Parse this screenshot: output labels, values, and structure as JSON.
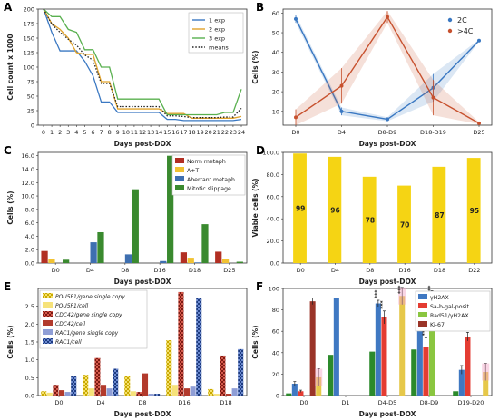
{
  "chart_data": [
    {
      "panel": "A",
      "type": "line",
      "ylabel": "Cell count x 1000",
      "xlabel": "Days post-DOX",
      "ylim": [
        0,
        200
      ],
      "yticks": [
        0,
        25,
        50,
        75,
        100,
        125,
        150,
        175,
        200
      ],
      "xticks": [
        "0",
        "1",
        "2",
        "3",
        "4",
        "5",
        "6",
        "7",
        "8",
        "9",
        "10",
        "11",
        "12",
        "13",
        "14",
        "15",
        "16",
        "17",
        "18",
        "19",
        "20",
        "21",
        "22",
        "23",
        "24"
      ],
      "x": [
        0,
        1,
        2,
        3,
        4,
        5,
        6,
        7,
        8,
        9,
        10,
        11,
        12,
        13,
        14,
        15,
        16,
        17,
        18,
        19,
        20,
        21,
        22,
        23,
        24
      ],
      "legend_position": "top-right",
      "series": [
        {
          "name": "1 exp",
          "color": "#3a78c2",
          "dash": "solid",
          "values": [
            200,
            160,
            128,
            128,
            128,
            110,
            85,
            40,
            40,
            22,
            22,
            22,
            22,
            22,
            22,
            10,
            10,
            8,
            8,
            8,
            8,
            8,
            8,
            8,
            10
          ]
        },
        {
          "name": "2 exp",
          "color": "#e1a32c",
          "dash": "solid",
          "values": [
            200,
            175,
            165,
            150,
            125,
            122,
            122,
            75,
            75,
            28,
            28,
            28,
            28,
            28,
            28,
            20,
            20,
            20,
            12,
            12,
            12,
            12,
            12,
            12,
            15
          ]
        },
        {
          "name": "3 exp",
          "color": "#59b04f",
          "dash": "solid",
          "values": [
            200,
            187,
            187,
            165,
            160,
            130,
            130,
            100,
            100,
            45,
            45,
            45,
            45,
            45,
            45,
            18,
            18,
            18,
            18,
            18,
            18,
            18,
            22,
            22,
            62
          ]
        },
        {
          "name": "means",
          "color": "#222222",
          "dash": "dot",
          "values": [
            200,
            174,
            160,
            148,
            138,
            121,
            112,
            72,
            72,
            32,
            32,
            32,
            32,
            32,
            32,
            16,
            16,
            15,
            13,
            13,
            13,
            13,
            14,
            14,
            29
          ]
        }
      ]
    },
    {
      "panel": "B",
      "type": "line",
      "ylabel": "Cells (%)",
      "xlabel": "Days post-DOX",
      "ylim": [
        3,
        62
      ],
      "yticks": [
        10,
        20,
        30,
        40,
        50,
        60
      ],
      "categories": [
        "D0",
        "D4",
        "D8-D9",
        "D18-D19",
        "D25"
      ],
      "legend_position": "top-right",
      "series": [
        {
          "name": "2C",
          "color": "#3a78c2",
          "values": [
            57,
            10,
            6,
            22,
            46
          ],
          "errors": [
            2,
            2,
            1,
            7,
            0.5
          ]
        },
        {
          "name": ">4C",
          "color": "#c7512e",
          "values": [
            7,
            23,
            58,
            17,
            4
          ],
          "errors": [
            4,
            9,
            3,
            9,
            0.5
          ]
        }
      ]
    },
    {
      "panel": "C",
      "type": "bar",
      "ylabel": "Cells (%)",
      "xlabel": "Days post-DOX",
      "ylim": [
        0,
        16.5
      ],
      "yticks": [
        "0.0",
        "2.0",
        "4.0",
        "6.0",
        "8.0",
        "10.0",
        "12.0",
        "14.0",
        "16.0"
      ],
      "categories": [
        "D0",
        "D4",
        "D8",
        "D16",
        "D18",
        "D25"
      ],
      "legend_position": "top-right",
      "series": [
        {
          "name": "Norm metaph",
          "color": "#b22f23",
          "values": [
            1.8,
            0,
            0,
            0,
            1.6,
            1.7
          ]
        },
        {
          "name": "A+T",
          "color": "#f1c232",
          "values": [
            0.6,
            0,
            0,
            0,
            0.8,
            0.6
          ]
        },
        {
          "name": "Aberrant metaph",
          "color": "#3e6fb0",
          "values": [
            0,
            3.1,
            1.3,
            0.3,
            0.1,
            0
          ]
        },
        {
          "name": "Mitotic slippage",
          "color": "#3a8a2f",
          "values": [
            0.5,
            4.6,
            11.0,
            16.0,
            5.8,
            0.2
          ]
        }
      ]
    },
    {
      "panel": "D",
      "type": "bar",
      "ylabel": "Viable cells (%)",
      "xlabel": "Days post-DOX",
      "ylim": [
        0,
        100
      ],
      "yticks": [
        "0.0",
        "20.0",
        "40.0",
        "60.0",
        "80.0",
        "100.0"
      ],
      "categories": [
        "D0",
        "D4",
        "D8",
        "D16",
        "D18",
        "D22"
      ],
      "series": [
        {
          "name": "",
          "color": "#f5d414",
          "values": [
            99,
            96,
            78,
            70,
            87,
            95
          ]
        }
      ],
      "data_labels": [
        "99",
        "96",
        "78",
        "70",
        "87",
        "95"
      ]
    },
    {
      "panel": "E",
      "type": "bar",
      "ylabel": "Cells (%)",
      "xlabel": "Days post-DOX",
      "ylim": [
        0,
        3.0
      ],
      "yticks": [
        "0.0",
        "0.5",
        "1.0",
        "1.5",
        "2.0",
        "2.5"
      ],
      "categories": [
        "D0",
        "D4",
        "D8",
        "D16",
        "D18"
      ],
      "legend_position": "top-left",
      "series": [
        {
          "name": "POU5F1/gene single copy",
          "color": "#f0d23a",
          "pattern": "check",
          "values": [
            0.12,
            0.58,
            0.55,
            1.55,
            0.18
          ]
        },
        {
          "name": "POU5F1/cell",
          "color": "#f6e27a",
          "pattern": "solid",
          "values": [
            0.08,
            0.2,
            0.12,
            0.3,
            0.05
          ]
        },
        {
          "name": "CDC42/gene single copy",
          "color": "#c8392c",
          "pattern": "check",
          "values": [
            0.3,
            1.05,
            0.1,
            2.9,
            1.12
          ]
        },
        {
          "name": "CDC42/cell",
          "color": "#b23a2c",
          "pattern": "solid",
          "values": [
            0.15,
            0.3,
            0.62,
            0.2,
            0.05
          ]
        },
        {
          "name": "RAC1/gene single copy",
          "color": "#8f9ed6",
          "pattern": "solid",
          "values": [
            0.1,
            0.2,
            0.05,
            0.25,
            0.2
          ]
        },
        {
          "name": "RAC1/cell",
          "color": "#2f55a5",
          "pattern": "check",
          "values": [
            0.55,
            0.75,
            0.05,
            2.72,
            1.3
          ]
        }
      ]
    },
    {
      "panel": "F",
      "type": "bar",
      "ylabel": "Cells (%)",
      "xlabel": "Days post-DOX",
      "ylim": [
        0,
        100
      ],
      "yticks": [
        "0",
        "20",
        "40",
        "60",
        "80",
        "100"
      ],
      "categories": [
        "D0",
        "D1",
        "D4-D5",
        "D8-D9",
        "D19-D20"
      ],
      "legend_position": "top-right",
      "annotations": [
        "***"
      ],
      "series": [
        {
          "name": "",
          "color": "#2c8a2c",
          "values": [
            2,
            38,
            41,
            43,
            4
          ]
        },
        {
          "name": "γH2AX",
          "color": "#3f78c2",
          "values": [
            11,
            91,
            86,
            77,
            24
          ],
          "errors": [
            2,
            0,
            3,
            6,
            4
          ]
        },
        {
          "name": "Sa-b-gal-posit.",
          "color": "#e43c32",
          "values": [
            4,
            0,
            73,
            45,
            55
          ],
          "errors": [
            1,
            0,
            6,
            9,
            4
          ]
        },
        {
          "name": "Rad51/γH2AX",
          "color": "#8ac640",
          "values": [
            0,
            0,
            0,
            93,
            0
          ],
          "errors": [
            0,
            0,
            0,
            5,
            0
          ]
        },
        {
          "name": "Ki-67",
          "color": "#9a3428",
          "values": [
            88,
            0,
            0,
            0,
            0
          ],
          "errors": [
            3,
            0,
            0,
            0,
            0
          ]
        },
        {
          "name": "",
          "color": "#e6c84a",
          "values": [
            17,
            0,
            93,
            0,
            22
          ],
          "errors": [
            8,
            0,
            8,
            0,
            8
          ]
        }
      ]
    }
  ],
  "panel_labels": [
    "A",
    "B",
    "C",
    "D",
    "E",
    "F"
  ]
}
